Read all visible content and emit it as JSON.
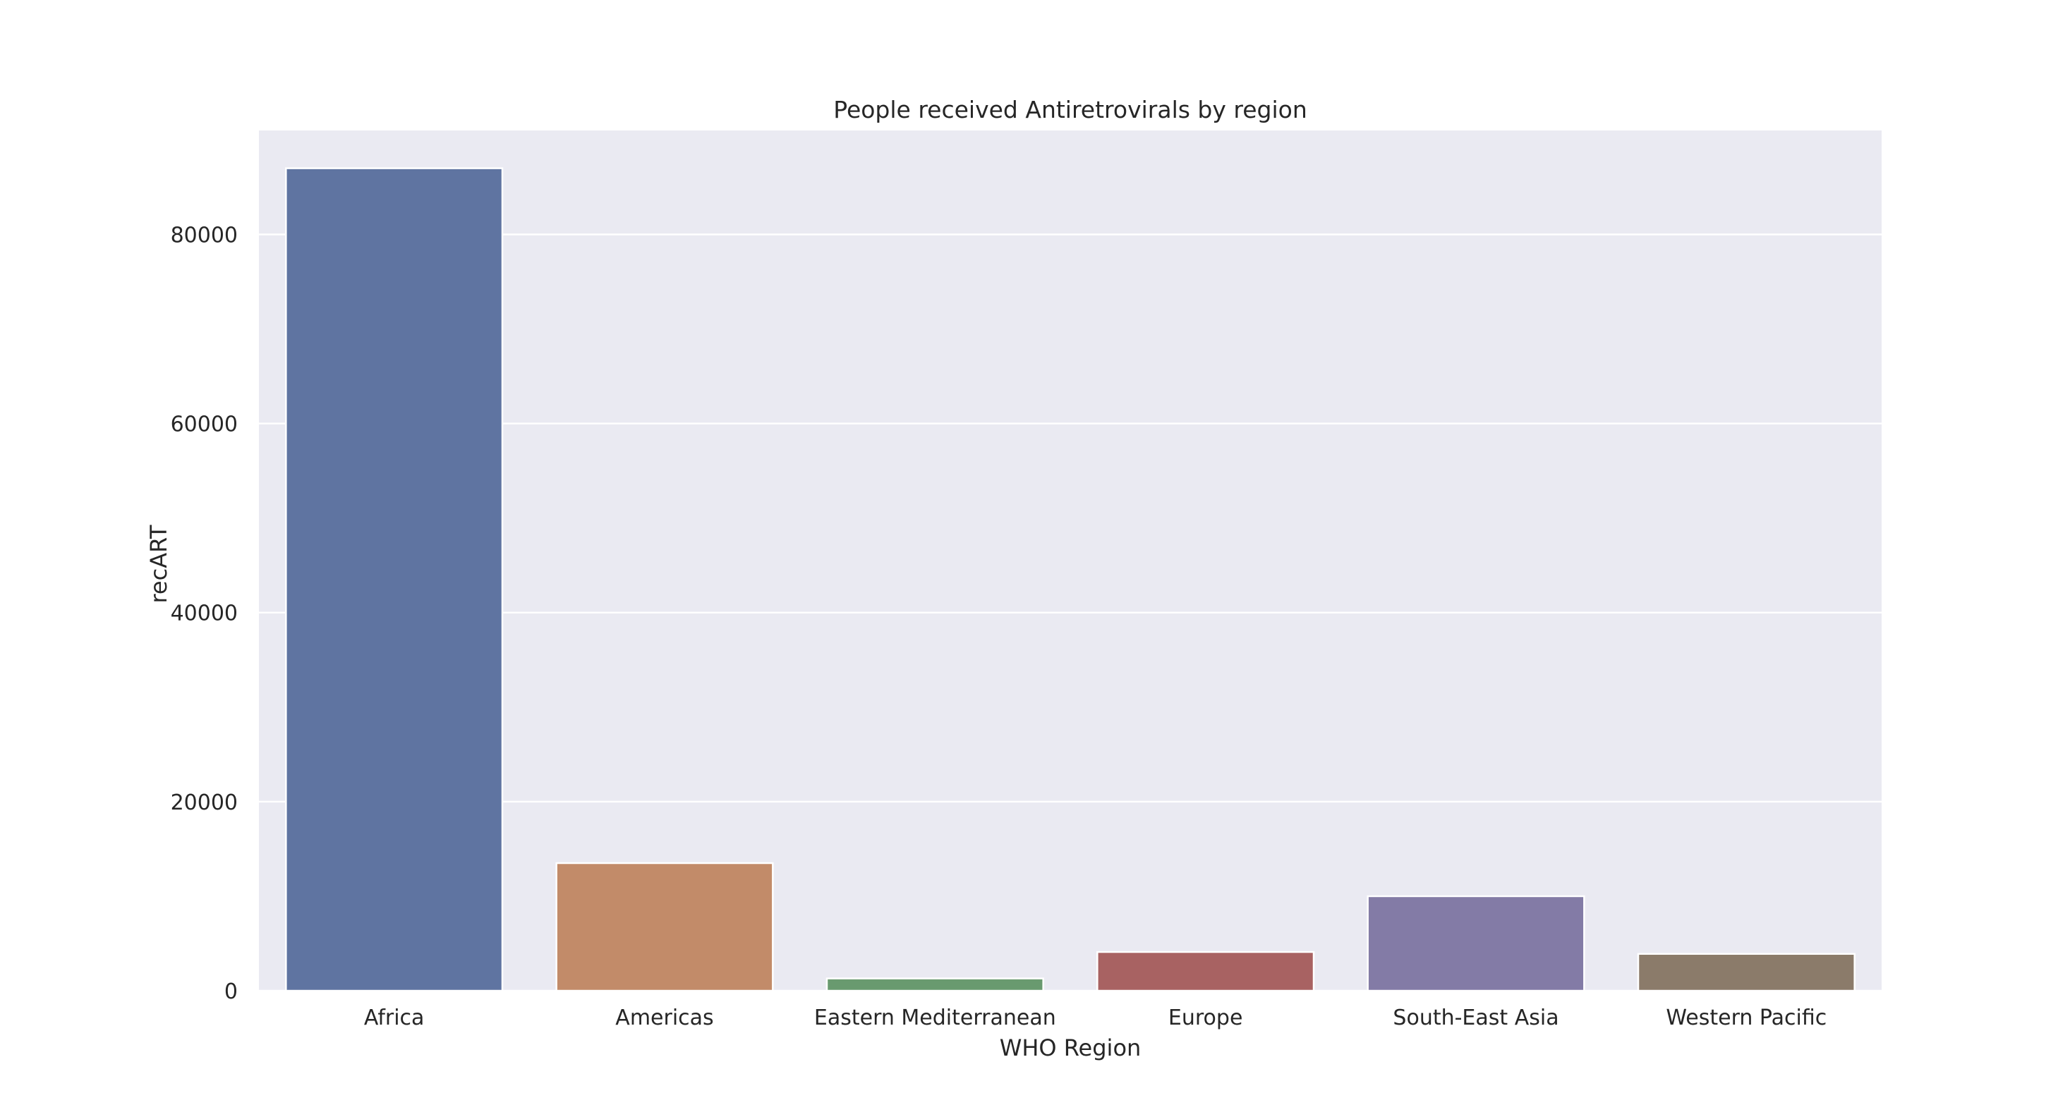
{
  "chart_data": {
    "type": "bar",
    "title": "People received Antiretrovirals by region",
    "xlabel": "WHO Region",
    "ylabel": "recART",
    "categories": [
      "Africa",
      "Americas",
      "Eastern Mediterranean",
      "Europe",
      "South-East Asia",
      "Western Pacific"
    ],
    "values": [
      87000,
      13500,
      1300,
      4100,
      10000,
      3900
    ],
    "colors": [
      "#5f74a1",
      "#c28b69",
      "#699a6f",
      "#a86262",
      "#837ba6",
      "#8b7b6a"
    ],
    "ylim": [
      0,
      91000
    ],
    "yticks": [
      0,
      20000,
      40000,
      60000,
      80000
    ],
    "ytick_labels": [
      "0",
      "20000",
      "40000",
      "60000",
      "80000"
    ],
    "grid": true,
    "grid_axis": "y",
    "background": "#eaeaf2",
    "legend": "none"
  }
}
